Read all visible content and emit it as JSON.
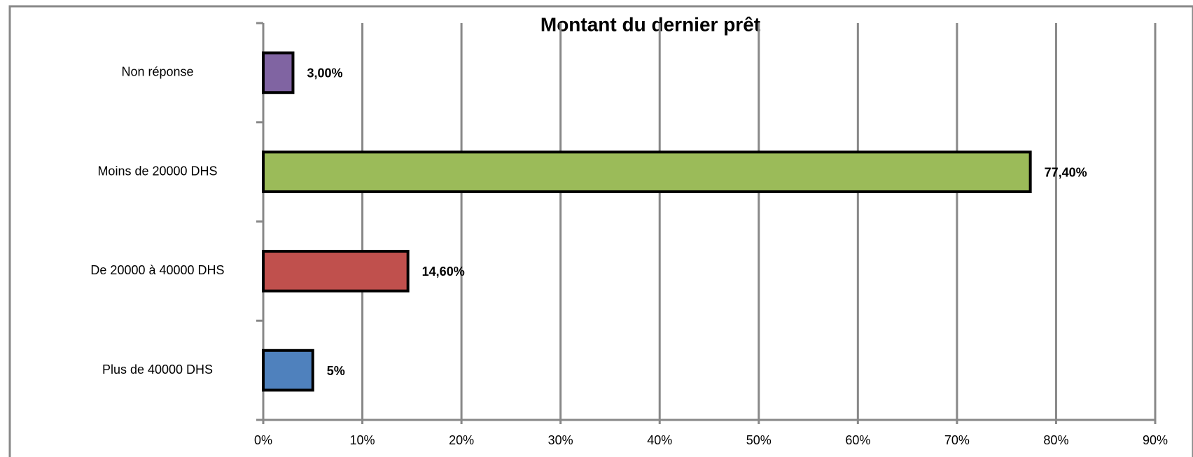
{
  "chart_data": {
    "type": "barh",
    "title": "Montant du dernier prêt",
    "categories": [
      "Plus de 40000 DHS",
      "De 20000 à 40000 DHS",
      "Moins de 20000 DHS",
      "Non réponse"
    ],
    "values": [
      5,
      14.6,
      77.4,
      3
    ],
    "value_labels": [
      "5%",
      "14,60%",
      "77,40%",
      "3,00%"
    ],
    "colors": [
      "#4f81bd",
      "#c0504d",
      "#9bbb59",
      "#8064a2"
    ],
    "xlim": [
      0,
      90
    ],
    "xticks": [
      {
        "value": 0,
        "label": "0%"
      },
      {
        "value": 10,
        "label": "10%"
      },
      {
        "value": 20,
        "label": "20%"
      },
      {
        "value": 30,
        "label": "30%"
      },
      {
        "value": 40,
        "label": "40%"
      },
      {
        "value": 50,
        "label": "50%"
      },
      {
        "value": 60,
        "label": "60%"
      },
      {
        "value": 70,
        "label": "70%"
      },
      {
        "value": 80,
        "label": "80%"
      },
      {
        "value": 90,
        "label": "90%"
      }
    ],
    "grid": true
  }
}
